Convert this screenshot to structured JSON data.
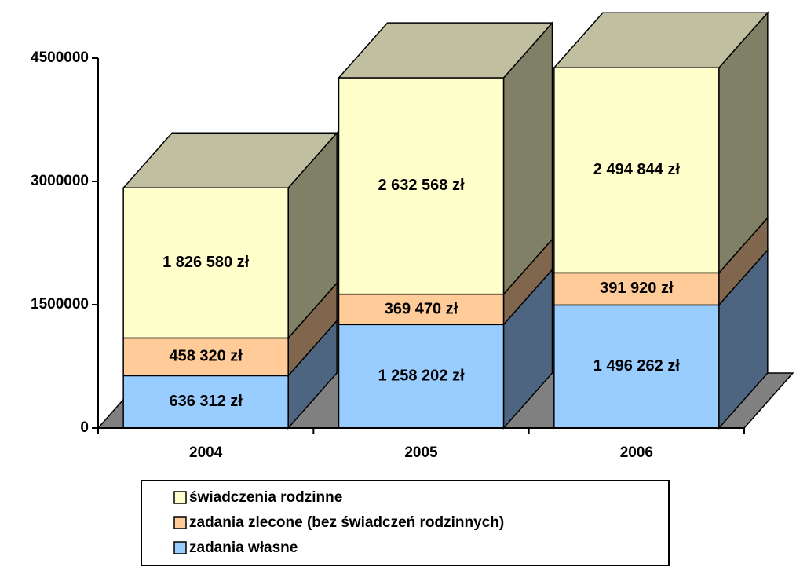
{
  "chart_data": {
    "type": "bar3d_stacked",
    "categories": [
      "2004",
      "2005",
      "2006"
    ],
    "ylim": [
      0,
      4500000
    ],
    "yticks": [
      0,
      1500000,
      3000000,
      4500000
    ],
    "legend": "bottom",
    "series": [
      {
        "name": "zadania własne",
        "color": "#99ccff",
        "side_color": "#4d6580",
        "values": [
          636312,
          1258202,
          1496262
        ],
        "value_labels": [
          "636 312 zł",
          "1 258 202 zł",
          "1 496 262 zł"
        ]
      },
      {
        "name": "zadania zlecone (bez świadczeń rodzinnych)",
        "color": "#ffcc99",
        "side_color": "#80664d",
        "values": [
          458320,
          369470,
          391920
        ],
        "value_labels": [
          "458 320 zł",
          "369 470 zł",
          "391 920 zł"
        ]
      },
      {
        "name": "świadczenia rodzinne",
        "color": "#ffffcc",
        "side_color": "#808066",
        "top_color": "#c0c0a0",
        "values": [
          1826580,
          2632568,
          2494844
        ],
        "value_labels": [
          "1 826 580 zł",
          "2 632 568 zł",
          "2 494 844 zł"
        ]
      }
    ]
  }
}
